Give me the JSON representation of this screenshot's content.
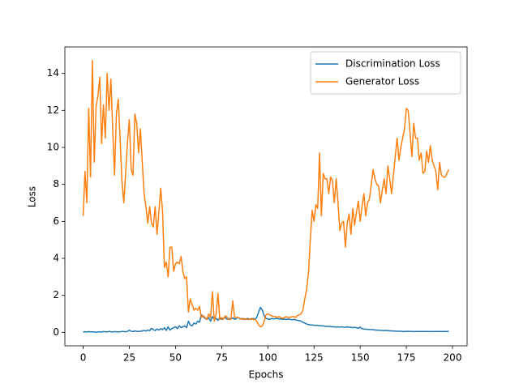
{
  "chart_data": {
    "type": "line",
    "xlabel": "Epochs",
    "ylabel": "Loss",
    "x": [
      0,
      1,
      2,
      3,
      4,
      5,
      6,
      7,
      8,
      9,
      10,
      11,
      12,
      13,
      14,
      15,
      16,
      17,
      18,
      19,
      20,
      21,
      22,
      23,
      24,
      25,
      26,
      27,
      28,
      29,
      30,
      31,
      32,
      33,
      34,
      35,
      36,
      37,
      38,
      39,
      40,
      41,
      42,
      43,
      44,
      45,
      46,
      47,
      48,
      49,
      50,
      51,
      52,
      53,
      54,
      55,
      56,
      57,
      58,
      59,
      60,
      61,
      62,
      63,
      64,
      65,
      66,
      67,
      68,
      69,
      70,
      71,
      72,
      73,
      74,
      75,
      76,
      77,
      78,
      79,
      80,
      81,
      82,
      83,
      84,
      85,
      86,
      87,
      88,
      89,
      90,
      91,
      92,
      93,
      94,
      95,
      96,
      97,
      98,
      99,
      100,
      101,
      102,
      103,
      104,
      105,
      106,
      107,
      108,
      109,
      110,
      111,
      112,
      113,
      114,
      115,
      116,
      117,
      118,
      119,
      120,
      121,
      122,
      123,
      124,
      125,
      126,
      127,
      128,
      129,
      130,
      131,
      132,
      133,
      134,
      135,
      136,
      137,
      138,
      139,
      140,
      141,
      142,
      143,
      144,
      145,
      146,
      147,
      148,
      149,
      150,
      151,
      152,
      153,
      154,
      155,
      156,
      157,
      158,
      159,
      160,
      161,
      162,
      163,
      164,
      165,
      166,
      167,
      168,
      169,
      170,
      171,
      172,
      173,
      174,
      175,
      176,
      177,
      178,
      179,
      180,
      181,
      182,
      183,
      184,
      185,
      186,
      187,
      188,
      189,
      190,
      191,
      192,
      193,
      194,
      195,
      196,
      197,
      198
    ],
    "series": [
      {
        "name": "Discrimination Loss",
        "color": "#1f77b4",
        "values": [
          0.02,
          0.03,
          0.02,
          0.04,
          0.02,
          0.03,
          0.02,
          0.01,
          0.02,
          0.03,
          0.02,
          0.04,
          0.03,
          0.02,
          0.05,
          0.03,
          0.02,
          0.04,
          0.03,
          0.02,
          0.03,
          0.05,
          0.04,
          0.03,
          0.05,
          0.12,
          0.06,
          0.04,
          0.08,
          0.05,
          0.06,
          0.05,
          0.08,
          0.1,
          0.07,
          0.12,
          0.09,
          0.22,
          0.15,
          0.1,
          0.18,
          0.12,
          0.2,
          0.15,
          0.25,
          0.1,
          0.3,
          0.12,
          0.2,
          0.25,
          0.3,
          0.2,
          0.35,
          0.25,
          0.3,
          0.35,
          0.25,
          0.6,
          0.4,
          0.35,
          0.5,
          0.45,
          0.6,
          0.55,
          0.95,
          0.85,
          0.75,
          0.7,
          0.8,
          0.6,
          0.85,
          0.7,
          0.75,
          0.65,
          0.8,
          0.7,
          0.75,
          0.8,
          0.7,
          0.75,
          0.72,
          0.78,
          0.7,
          0.75,
          0.8,
          0.72,
          0.75,
          0.7,
          0.72,
          0.75,
          0.72,
          0.7,
          0.75,
          0.72,
          0.8,
          1.1,
          1.35,
          1.2,
          0.9,
          0.75,
          0.72,
          0.7,
          0.75,
          0.72,
          0.74,
          0.75,
          0.72,
          0.73,
          0.7,
          0.72,
          0.7,
          0.72,
          0.7,
          0.68,
          0.7,
          0.68,
          0.65,
          0.64,
          0.6,
          0.55,
          0.5,
          0.45,
          0.42,
          0.4,
          0.4,
          0.38,
          0.38,
          0.37,
          0.36,
          0.35,
          0.35,
          0.33,
          0.32,
          0.32,
          0.31,
          0.3,
          0.3,
          0.28,
          0.3,
          0.28,
          0.3,
          0.28,
          0.27,
          0.3,
          0.28,
          0.28,
          0.25,
          0.27,
          0.25,
          0.22,
          0.28,
          0.2,
          0.18,
          0.17,
          0.16,
          0.15,
          0.15,
          0.14,
          0.13,
          0.12,
          0.12,
          0.1,
          0.1,
          0.09,
          0.1,
          0.09,
          0.08,
          0.08,
          0.07,
          0.07,
          0.06,
          0.06,
          0.06,
          0.05,
          0.05,
          0.05,
          0.06,
          0.05,
          0.05,
          0.04,
          0.05,
          0.04,
          0.05,
          0.04,
          0.05,
          0.04,
          0.05,
          0.04,
          0.04,
          0.05,
          0.04,
          0.05,
          0.04,
          0.05,
          0.04,
          0.05,
          0.05,
          0.04,
          0.06
        ]
      },
      {
        "name": "Generator Loss",
        "color": "#ff7f0e",
        "values": [
          6.3,
          8.7,
          7.0,
          12.1,
          8.4,
          14.7,
          9.2,
          12.2,
          12.8,
          13.8,
          10.2,
          12.3,
          10.5,
          14.0,
          12.0,
          13.7,
          11.0,
          8.5,
          11.8,
          12.6,
          10.5,
          8.2,
          7.0,
          8.6,
          10.3,
          11.5,
          8.8,
          8.5,
          11.8,
          11.3,
          9.7,
          11.0,
          9.2,
          7.5,
          6.8,
          5.9,
          6.8,
          5.9,
          5.7,
          6.8,
          5.3,
          6.5,
          7.8,
          6.5,
          3.5,
          3.8,
          3.0,
          4.6,
          4.6,
          3.3,
          3.7,
          3.8,
          3.7,
          4.1,
          3.3,
          2.9,
          3.0,
          1.1,
          1.8,
          1.5,
          1.2,
          1.3,
          1.2,
          1.4,
          0.8,
          0.9,
          0.8,
          0.7,
          1.0,
          0.8,
          2.2,
          0.6,
          1.0,
          2.1,
          0.7,
          0.8,
          0.7,
          0.9,
          0.8,
          0.7,
          0.7,
          1.7,
          0.8,
          0.8,
          0.8,
          0.75,
          0.7,
          0.75,
          0.7,
          0.7,
          0.7,
          0.75,
          0.7,
          0.7,
          0.6,
          0.4,
          0.3,
          0.35,
          0.6,
          0.95,
          1.0,
          0.95,
          0.9,
          0.85,
          0.85,
          0.8,
          0.85,
          0.8,
          0.75,
          0.8,
          0.85,
          0.8,
          0.8,
          0.85,
          0.85,
          0.8,
          0.9,
          0.95,
          1.0,
          1.2,
          1.8,
          2.3,
          3.2,
          5.0,
          6.6,
          6.0,
          6.9,
          6.7,
          9.7,
          6.3,
          8.6,
          8.3,
          8.3,
          7.5,
          8.4,
          8.2,
          7.0,
          8.3,
          7.0,
          5.5,
          5.9,
          6.0,
          4.6,
          5.9,
          6.4,
          5.3,
          6.7,
          5.8,
          6.5,
          7.1,
          6.0,
          6.8,
          7.5,
          6.3,
          7.0,
          7.2,
          8.0,
          8.8,
          8.3,
          8.0,
          7.9,
          7.0,
          7.7,
          8.3,
          7.5,
          9.0,
          8.3,
          7.5,
          8.5,
          9.5,
          10.5,
          9.3,
          10.0,
          10.5,
          11.0,
          12.1,
          12.0,
          10.8,
          9.5,
          11.3,
          10.5,
          10.5,
          9.3,
          9.7,
          8.6,
          8.7,
          9.8,
          9.2,
          10.1,
          9.3,
          9.0,
          8.7,
          7.7,
          9.2,
          8.5,
          8.4,
          8.4,
          8.6,
          8.8
        ]
      }
    ],
    "xlim": [
      -9.9,
      207.9
    ],
    "xticks": [
      0,
      25,
      50,
      75,
      100,
      125,
      150,
      175,
      200
    ],
    "ylim": [
      -0.73,
      15.43
    ],
    "yticks": [
      0,
      2,
      4,
      6,
      8,
      10,
      12,
      14
    ],
    "grid": false,
    "legend": "upper right"
  }
}
